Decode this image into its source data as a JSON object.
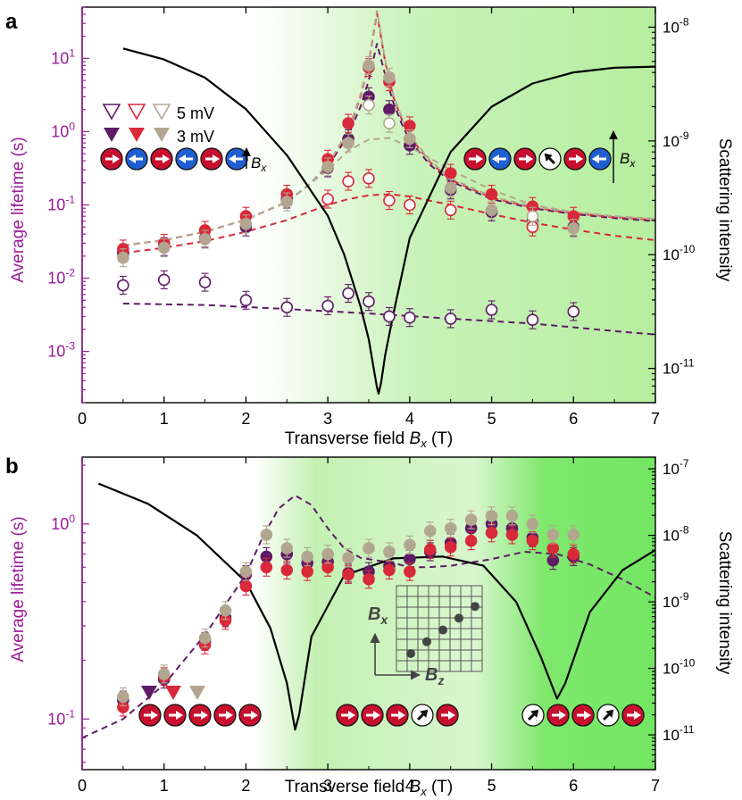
{
  "colors": {
    "purple": "#5e1b66",
    "red": "#d8293a",
    "tan": "#b3a690",
    "axis_left": "#9b1a9b",
    "spin_red": "#c8102e",
    "spin_blue": "#1f5fd1",
    "green_light": "#c8f2b8",
    "green_dark": "#6ae45a"
  },
  "chart_data": [
    {
      "type": "scatter",
      "panel_label": "a",
      "xlabel": "Transverse field ",
      "xlabel_sym": "B",
      "xlabel_sub": "x",
      "xlabel_unit": " (T)",
      "ylabel": "Average lifetime (s)",
      "ylabel_right": "Scattering intensity",
      "xlim": [
        0,
        7
      ],
      "ylim": [
        0.0002,
        50
      ],
      "yscale": "log",
      "x_ticks": [
        "0",
        "1",
        "2",
        "3",
        "4",
        "5",
        "6",
        "7"
      ],
      "y_ticks": [
        {
          "base": "10",
          "exp": "-3"
        },
        {
          "base": "10",
          "exp": "-2"
        },
        {
          "base": "10",
          "exp": "-1"
        },
        {
          "base": "10",
          "exp": "0"
        },
        {
          "base": "10",
          "exp": "1"
        }
      ],
      "y_ticks_right": [
        {
          "base": "10",
          "exp": "-11"
        },
        {
          "base": "10",
          "exp": "-10"
        },
        {
          "base": "10",
          "exp": "-9"
        },
        {
          "base": "10",
          "exp": "-8"
        }
      ],
      "legend": {
        "open_label": "5 mV",
        "filled_label": "3 mV"
      },
      "field_label_sym": "B",
      "field_label_sub": "x",
      "series": [
        {
          "name": "3 mV purple",
          "color": "purple",
          "filled": true,
          "x": [
            0.5,
            1.0,
            1.5,
            2.0,
            2.5,
            3.0,
            3.25,
            3.5,
            3.75,
            4.0,
            4.5,
            5.0,
            5.5,
            6.0
          ],
          "y": [
            0.022,
            0.027,
            0.035,
            0.05,
            0.12,
            0.32,
            0.8,
            3.0,
            2.0,
            0.65,
            0.16,
            0.08,
            0.06,
            0.05
          ]
        },
        {
          "name": "3 mV red",
          "color": "red",
          "filled": true,
          "x": [
            0.5,
            1.0,
            1.5,
            2.0,
            2.5,
            3.0,
            3.25,
            3.5,
            3.75,
            4.0,
            4.5,
            5.0,
            5.5,
            6.0
          ],
          "y": [
            0.025,
            0.03,
            0.045,
            0.07,
            0.14,
            0.42,
            1.3,
            7.5,
            4.8,
            1.2,
            0.27,
            0.14,
            0.095,
            0.07
          ]
        },
        {
          "name": "3 mV tan",
          "color": "tan",
          "filled": true,
          "x": [
            0.5,
            1.0,
            1.5,
            2.0,
            2.5,
            3.0,
            3.25,
            3.5,
            3.75,
            4.0,
            4.5,
            5.0,
            5.5,
            6.0
          ],
          "y": [
            0.019,
            0.026,
            0.034,
            0.055,
            0.11,
            0.33,
            0.7,
            8.0,
            5.5,
            0.8,
            0.17,
            0.085,
            0.055,
            0.048
          ]
        },
        {
          "name": "5 mV purple",
          "color": "purple",
          "filled": false,
          "x": [
            0.5,
            1.0,
            1.5,
            2.0,
            2.5,
            3.0,
            3.25,
            3.5,
            3.75,
            4.0,
            4.5,
            5.0,
            5.5,
            6.0
          ],
          "y": [
            0.008,
            0.0095,
            0.0088,
            0.005,
            0.004,
            0.0042,
            0.0062,
            0.0048,
            0.003,
            0.0029,
            0.0028,
            0.0037,
            0.0027,
            0.0035
          ]
        },
        {
          "name": "5 mV red",
          "color": "red",
          "filled": false,
          "x": [
            3.0,
            3.25,
            3.5,
            3.75,
            4.0,
            4.5,
            5.5
          ],
          "y": [
            0.12,
            0.21,
            0.23,
            0.115,
            0.1,
            0.085,
            0.05
          ]
        },
        {
          "name": "5 mV tan",
          "color": "tan",
          "filled": false,
          "x": [
            3.5,
            3.75,
            5.5
          ],
          "y": [
            2.3,
            1.3,
            0.07
          ]
        }
      ],
      "fits": [
        {
          "color": "purple",
          "x": [
            0.5,
            1.5,
            2.5,
            3.5,
            4.5,
            5.5,
            6.5,
            7.0
          ],
          "y": [
            0.0045,
            0.0043,
            0.0038,
            0.0033,
            0.0028,
            0.0024,
            0.0019,
            0.0017
          ]
        },
        {
          "color": "red",
          "x": [
            0.5,
            1.0,
            1.5,
            2.0,
            2.5,
            3.0,
            3.25,
            3.5,
            3.75,
            4.0,
            4.5,
            5.0,
            5.5,
            6.0,
            6.5,
            7.0
          ],
          "y": [
            0.022,
            0.026,
            0.032,
            0.043,
            0.062,
            0.1,
            0.12,
            0.135,
            0.14,
            0.13,
            0.1,
            0.075,
            0.057,
            0.046,
            0.038,
            0.033
          ]
        },
        {
          "color": "purple",
          "x": [
            0.5,
            1.0,
            1.5,
            2.0,
            2.5,
            2.75,
            3.0,
            3.25,
            3.4,
            3.5,
            3.6,
            3.7,
            3.8,
            3.9,
            4.0,
            4.25,
            4.5,
            5.0,
            5.5,
            6.0,
            6.5,
            7.0
          ],
          "y": [
            0.028,
            0.033,
            0.043,
            0.063,
            0.11,
            0.18,
            0.33,
            0.9,
            2.2,
            5.0,
            16.0,
            6.0,
            2.5,
            1.3,
            0.75,
            0.35,
            0.21,
            0.12,
            0.09,
            0.075,
            0.066,
            0.06
          ]
        },
        {
          "color": "red",
          "x": [
            0.5,
            1.0,
            1.5,
            2.0,
            2.5,
            2.75,
            3.0,
            3.25,
            3.4,
            3.5,
            3.6,
            3.7,
            3.8,
            3.9,
            4.0,
            4.25,
            4.5,
            5.0,
            5.5,
            6.0,
            6.5,
            7.0
          ],
          "y": [
            0.028,
            0.033,
            0.043,
            0.063,
            0.11,
            0.18,
            0.34,
            1.0,
            3.0,
            8.5,
            42.0,
            9.0,
            3.0,
            1.5,
            0.85,
            0.38,
            0.22,
            0.125,
            0.092,
            0.077,
            0.068,
            0.062
          ]
        },
        {
          "color": "tan",
          "x": [
            0.5,
            1.0,
            1.5,
            2.0,
            2.5,
            2.75,
            3.0,
            3.25,
            3.4,
            3.5,
            3.6,
            3.7,
            3.8,
            3.9,
            4.0,
            4.25,
            4.5,
            5.0,
            5.5,
            6.0,
            6.5,
            7.0
          ],
          "y": [
            0.028,
            0.033,
            0.043,
            0.063,
            0.11,
            0.18,
            0.35,
            1.05,
            3.2,
            9.0,
            45.0,
            9.5,
            3.2,
            1.6,
            0.9,
            0.4,
            0.23,
            0.13,
            0.095,
            0.08,
            0.07,
            0.064
          ]
        },
        {
          "color": "tan",
          "x": [
            0.5,
            1.0,
            1.5,
            2.0,
            2.5,
            3.0,
            3.25,
            3.5,
            3.75,
            4.0,
            4.5,
            5.0,
            5.5,
            6.0,
            6.5,
            7.0
          ],
          "y": [
            0.028,
            0.033,
            0.043,
            0.063,
            0.11,
            0.3,
            0.55,
            0.78,
            0.82,
            0.62,
            0.3,
            0.16,
            0.1,
            0.08,
            0.07,
            0.065
          ]
        }
      ],
      "scattering": {
        "color": "#000000",
        "x": [
          0.5,
          1.0,
          1.5,
          2.0,
          2.5,
          3.0,
          3.2,
          3.4,
          3.5,
          3.55,
          3.6,
          3.62,
          3.65,
          3.7,
          3.8,
          4.0,
          4.5,
          5.0,
          5.5,
          6.0,
          6.5,
          7.0
        ],
        "y": [
          6.5e-09,
          5.2e-09,
          3.6e-09,
          1.9e-09,
          7.5e-10,
          2.2e-10,
          1e-10,
          3.5e-11,
          1.8e-11,
          1.1e-11,
          6.8e-12,
          6e-12,
          7.5e-12,
          1.3e-11,
          3e-11,
          1.4e-10,
          8e-10,
          2e-09,
          3.2e-09,
          4e-09,
          4.4e-09,
          4.5e-09
        ],
        "ylim": [
          5e-12,
          1.5e-08
        ]
      }
    },
    {
      "type": "scatter",
      "panel_label": "b",
      "xlabel": "Transverse field ",
      "xlabel_sym": "B",
      "xlabel_sub": "x",
      "xlabel_unit": " (T)",
      "ylabel": "Average lifetime (s)",
      "ylabel_right": "Scattering intensity",
      "xlim": [
        0,
        7
      ],
      "ylim": [
        0.055,
        2.2
      ],
      "yscale": "log",
      "x_ticks": [
        "0",
        "1",
        "2",
        "3",
        "4",
        "5",
        "6",
        "7"
      ],
      "y_ticks": [
        {
          "base": "10",
          "exp": "-1"
        },
        {
          "base": "10",
          "exp": "0"
        }
      ],
      "y_ticks_right": [
        {
          "base": "10",
          "exp": "-11"
        },
        {
          "base": "10",
          "exp": "-10"
        },
        {
          "base": "10",
          "exp": "-9"
        },
        {
          "base": "10",
          "exp": "-8"
        },
        {
          "base": "10",
          "exp": "-7"
        }
      ],
      "inset_labels": {
        "vertical_sym": "B",
        "vertical_sub": "x",
        "horizontal_sym": "B",
        "horizontal_sub": "z"
      },
      "series": [
        {
          "name": "purple",
          "color": "purple",
          "filled": true,
          "x": [
            0.5,
            1.0,
            1.5,
            1.75,
            2.0,
            2.25,
            2.5,
            2.75,
            3.0,
            3.25,
            3.5,
            3.75,
            4.0,
            4.25,
            4.5,
            4.75,
            5.0,
            5.25,
            5.5,
            5.75,
            6.0
          ],
          "y": [
            0.125,
            0.16,
            0.25,
            0.33,
            0.55,
            0.68,
            0.7,
            0.63,
            0.64,
            0.56,
            0.57,
            0.61,
            0.66,
            0.72,
            0.8,
            0.95,
            1.0,
            0.95,
            0.85,
            0.65,
            0.68
          ]
        },
        {
          "name": "red",
          "color": "red",
          "filled": true,
          "x": [
            0.5,
            1.0,
            1.5,
            1.75,
            2.0,
            2.25,
            2.5,
            2.75,
            3.0,
            3.25,
            3.5,
            3.75,
            4.0,
            4.25,
            4.5,
            4.75,
            5.0,
            5.25,
            5.5,
            5.75,
            6.0
          ],
          "y": [
            0.115,
            0.165,
            0.24,
            0.32,
            0.48,
            0.6,
            0.58,
            0.57,
            0.6,
            0.55,
            0.52,
            0.58,
            0.57,
            0.74,
            0.76,
            0.82,
            0.9,
            0.88,
            0.82,
            0.75,
            0.7
          ]
        },
        {
          "name": "tan",
          "color": "tan",
          "filled": true,
          "x": [
            0.5,
            1.0,
            1.5,
            1.75,
            2.0,
            2.25,
            2.5,
            2.75,
            3.0,
            3.25,
            3.5,
            3.75,
            4.0,
            4.25,
            4.5,
            4.75,
            5.0,
            5.25,
            5.5,
            5.75,
            6.0
          ],
          "y": [
            0.13,
            0.17,
            0.26,
            0.36,
            0.57,
            0.88,
            0.75,
            0.68,
            0.7,
            0.67,
            0.75,
            0.72,
            0.78,
            0.92,
            0.95,
            1.05,
            1.1,
            1.1,
            1.0,
            0.88,
            0.88
          ]
        }
      ],
      "fits": [
        {
          "color": "purple",
          "x": [
            0.0,
            0.5,
            1.0,
            1.5,
            2.0,
            2.2,
            2.4,
            2.6,
            2.8,
            3.0,
            3.2,
            3.4,
            3.6,
            3.8,
            4.0,
            4.2,
            4.5,
            5.0,
            5.4,
            5.8,
            6.2,
            6.6,
            7.0
          ],
          "y": [
            0.08,
            0.1,
            0.15,
            0.27,
            0.55,
            0.85,
            1.2,
            1.4,
            1.25,
            0.95,
            0.75,
            0.67,
            0.65,
            0.63,
            0.6,
            0.6,
            0.61,
            0.66,
            0.72,
            0.7,
            0.62,
            0.52,
            0.42
          ]
        }
      ],
      "scattering": {
        "color": "#000000",
        "x": [
          0.2,
          0.8,
          1.4,
          2.0,
          2.3,
          2.5,
          2.6,
          2.65,
          2.8,
          3.2,
          3.8,
          4.4,
          4.9,
          5.3,
          5.6,
          5.75,
          5.8,
          5.9,
          6.2,
          6.6,
          7.0
        ],
        "y": [
          6e-08,
          3e-08,
          1e-08,
          2e-09,
          4e-10,
          6e-11,
          1.2e-11,
          2e-11,
          3e-10,
          2.5e-09,
          4.5e-09,
          4.8e-09,
          3.5e-09,
          1e-09,
          1.5e-10,
          5e-11,
          3.5e-11,
          6e-11,
          7e-10,
          3e-09,
          6e-09
        ],
        "ylim": [
          3e-12,
          1.5e-07
        ]
      }
    }
  ]
}
